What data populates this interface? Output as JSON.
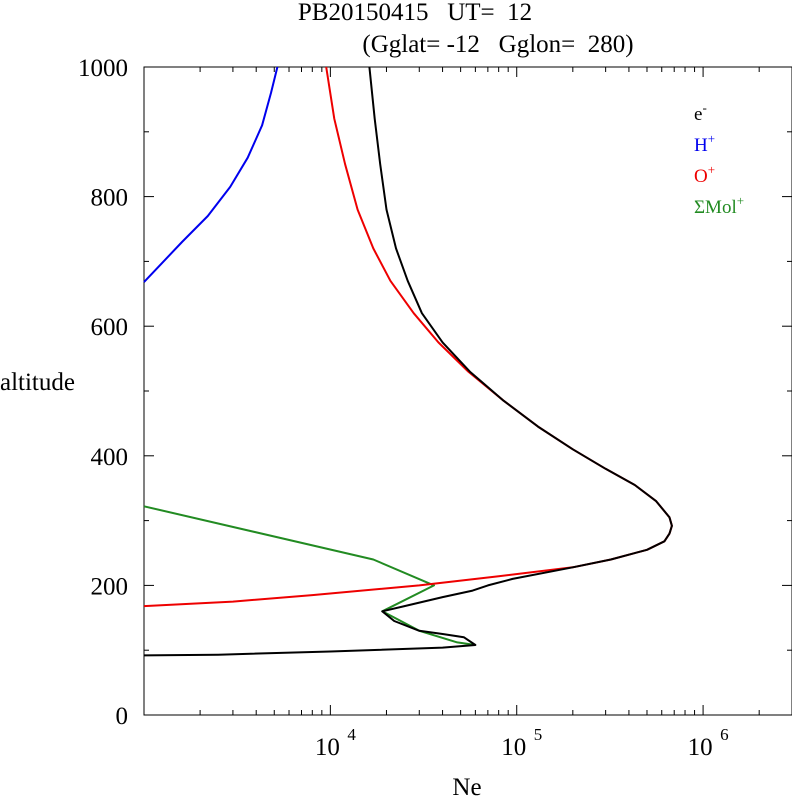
{
  "chart_data": {
    "type": "line",
    "title_line1": "PB20150415   UT=  12",
    "title_line2": "(Gglat= -12   Gglon=  280)",
    "xlabel": "Ne",
    "ylabel": "altitude",
    "x_scale": "log",
    "xlim": [
      1000,
      3000000
    ],
    "ylim": [
      0,
      1000
    ],
    "y_ticks": [
      "0",
      "200",
      "400",
      "600",
      "800",
      "1000"
    ],
    "x_ticks": [
      {
        "base": "10",
        "exp": "4",
        "value": 10000
      },
      {
        "base": "10",
        "exp": "5",
        "value": 100000
      },
      {
        "base": "10",
        "exp": "6",
        "value": 1000000
      }
    ],
    "legend_position": "top-right",
    "legend": [
      {
        "base": "e",
        "sup": "-",
        "color": "#000000"
      },
      {
        "base": "H",
        "sup": "+",
        "color": "#0000ee"
      },
      {
        "base": "O",
        "sup": "+",
        "color": "#ee0000"
      },
      {
        "base": "ΣMol",
        "sup": "+",
        "color": "#228b22"
      }
    ],
    "series": [
      {
        "color": "#228b22",
        "points": [
          [
            1000,
            322
          ],
          [
            17000,
            240
          ],
          [
            36000,
            200
          ],
          [
            19000,
            160
          ],
          [
            30000,
            130
          ],
          [
            48000,
            112
          ],
          [
            60000,
            108
          ]
        ]
      },
      {
        "color": "#0000ee",
        "points": [
          [
            1000,
            668
          ],
          [
            1600,
            730
          ],
          [
            2200,
            770
          ],
          [
            2900,
            815
          ],
          [
            3600,
            860
          ],
          [
            4300,
            910
          ],
          [
            4800,
            960
          ],
          [
            5200,
            1000
          ]
        ]
      },
      {
        "color": "#ee0000",
        "points": [
          [
            1000,
            168
          ],
          [
            3000,
            175
          ],
          [
            8000,
            185
          ],
          [
            30000,
            200
          ],
          [
            80000,
            214
          ],
          [
            200000,
            228
          ],
          [
            320000,
            240
          ],
          [
            500000,
            255
          ],
          [
            620000,
            268
          ],
          [
            660000,
            280
          ],
          [
            680000,
            292
          ],
          [
            660000,
            305
          ],
          [
            560000,
            330
          ],
          [
            430000,
            355
          ],
          [
            300000,
            380
          ],
          [
            200000,
            410
          ],
          [
            130000,
            445
          ],
          [
            85000,
            485
          ],
          [
            55000,
            530
          ],
          [
            38000,
            575
          ],
          [
            28000,
            620
          ],
          [
            21000,
            670
          ],
          [
            17000,
            720
          ],
          [
            14000,
            780
          ],
          [
            12000,
            850
          ],
          [
            10500,
            920
          ],
          [
            9500,
            1000
          ]
        ]
      },
      {
        "color": "#000000",
        "points": [
          [
            1000,
            92
          ],
          [
            2500,
            93
          ],
          [
            10000,
            98
          ],
          [
            40000,
            104
          ],
          [
            60000,
            108
          ],
          [
            52000,
            120
          ],
          [
            40000,
            125
          ],
          [
            30000,
            130
          ],
          [
            22000,
            145
          ],
          [
            19000,
            160
          ],
          [
            25000,
            168
          ],
          [
            40000,
            182
          ],
          [
            58000,
            192
          ],
          [
            70000,
            200
          ],
          [
            95000,
            210
          ],
          [
            200000,
            228
          ],
          [
            320000,
            240
          ],
          [
            500000,
            255
          ],
          [
            620000,
            268
          ],
          [
            660000,
            280
          ],
          [
            680000,
            292
          ],
          [
            660000,
            305
          ],
          [
            560000,
            330
          ],
          [
            430000,
            355
          ],
          [
            300000,
            380
          ],
          [
            200000,
            410
          ],
          [
            130000,
            445
          ],
          [
            85000,
            485
          ],
          [
            56000,
            530
          ],
          [
            40000,
            575
          ],
          [
            31000,
            620
          ],
          [
            26000,
            670
          ],
          [
            22500,
            720
          ],
          [
            20000,
            780
          ],
          [
            18500,
            850
          ],
          [
            17300,
            920
          ],
          [
            16200,
            1000
          ]
        ]
      }
    ]
  }
}
